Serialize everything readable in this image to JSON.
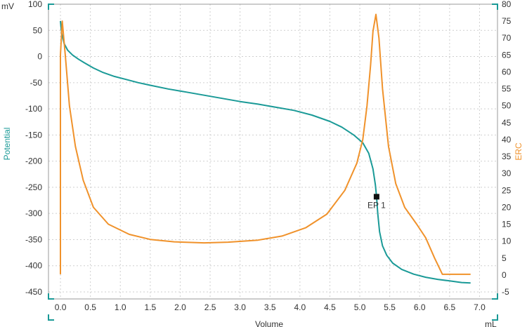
{
  "chart_data": {
    "type": "line",
    "x_unit": "mL",
    "x_title": "Volume",
    "y_left": {
      "title": "Potential",
      "unit": "mV",
      "range": [
        -450,
        100
      ],
      "ticks": [
        100,
        50,
        0,
        -50,
        -100,
        -150,
        -200,
        -250,
        -300,
        -350,
        -400,
        -450
      ],
      "color": "#1a9a97"
    },
    "y_right": {
      "title": "ERC",
      "range": [
        -5,
        80
      ],
      "ticks": [
        80,
        75,
        70,
        65,
        60,
        55,
        50,
        45,
        40,
        35,
        30,
        25,
        20,
        15,
        10,
        5,
        0,
        -5
      ],
      "color": "#f0922b"
    },
    "x_range": [
      -0.2,
      7.3
    ],
    "x_ticks": [
      "0.0",
      "0.5",
      "1.0",
      "1.5",
      "2.0",
      "2.5",
      "3.0",
      "3.5",
      "4.0",
      "4.5",
      "5.0",
      "5.5",
      "6.0",
      "6.5",
      "7.0"
    ],
    "grid": true,
    "series": [
      {
        "axis": "left",
        "color": "#1a9a97",
        "points": [
          [
            0.0,
            68
          ],
          [
            0.02,
            45
          ],
          [
            0.06,
            25
          ],
          [
            0.12,
            12
          ],
          [
            0.2,
            3
          ],
          [
            0.3,
            -5
          ],
          [
            0.4,
            -12
          ],
          [
            0.55,
            -22
          ],
          [
            0.7,
            -30
          ],
          [
            0.9,
            -38
          ],
          [
            1.1,
            -44
          ],
          [
            1.3,
            -50
          ],
          [
            1.5,
            -55
          ],
          [
            1.8,
            -62
          ],
          [
            2.1,
            -68
          ],
          [
            2.4,
            -74
          ],
          [
            2.7,
            -80
          ],
          [
            3.0,
            -86
          ],
          [
            3.3,
            -91
          ],
          [
            3.6,
            -97
          ],
          [
            3.9,
            -103
          ],
          [
            4.2,
            -112
          ],
          [
            4.5,
            -124
          ],
          [
            4.7,
            -135
          ],
          [
            4.9,
            -150
          ],
          [
            5.05,
            -165
          ],
          [
            5.15,
            -185
          ],
          [
            5.22,
            -215
          ],
          [
            5.26,
            -245
          ],
          [
            5.28,
            -268
          ],
          [
            5.3,
            -300
          ],
          [
            5.33,
            -335
          ],
          [
            5.38,
            -362
          ],
          [
            5.45,
            -380
          ],
          [
            5.55,
            -395
          ],
          [
            5.7,
            -407
          ],
          [
            5.9,
            -416
          ],
          [
            6.1,
            -422
          ],
          [
            6.3,
            -426
          ],
          [
            6.5,
            -429
          ],
          [
            6.7,
            -432
          ],
          [
            6.85,
            -433
          ]
        ]
      },
      {
        "axis": "right",
        "color": "#f0922b",
        "points": [
          [
            0.0,
            0.2
          ],
          [
            0.0,
            65
          ],
          [
            0.03,
            75
          ],
          [
            0.08,
            65
          ],
          [
            0.15,
            50
          ],
          [
            0.25,
            38
          ],
          [
            0.38,
            28
          ],
          [
            0.55,
            20
          ],
          [
            0.8,
            15
          ],
          [
            1.15,
            12
          ],
          [
            1.5,
            10.5
          ],
          [
            1.9,
            9.8
          ],
          [
            2.4,
            9.5
          ],
          [
            2.8,
            9.7
          ],
          [
            3.3,
            10.3
          ],
          [
            3.7,
            11.5
          ],
          [
            4.1,
            14
          ],
          [
            4.45,
            18
          ],
          [
            4.75,
            25
          ],
          [
            4.95,
            33
          ],
          [
            5.05,
            40
          ],
          [
            5.12,
            50
          ],
          [
            5.18,
            62
          ],
          [
            5.22,
            72
          ],
          [
            5.27,
            77
          ],
          [
            5.32,
            70
          ],
          [
            5.38,
            55
          ],
          [
            5.48,
            38
          ],
          [
            5.6,
            27
          ],
          [
            5.75,
            20
          ],
          [
            5.95,
            15
          ],
          [
            6.1,
            11
          ],
          [
            6.25,
            5
          ],
          [
            6.38,
            0.2
          ],
          [
            6.85,
            0.2
          ]
        ]
      }
    ],
    "annotations": [
      {
        "label": "EP 1",
        "x": 5.28,
        "y": -268
      }
    ]
  }
}
